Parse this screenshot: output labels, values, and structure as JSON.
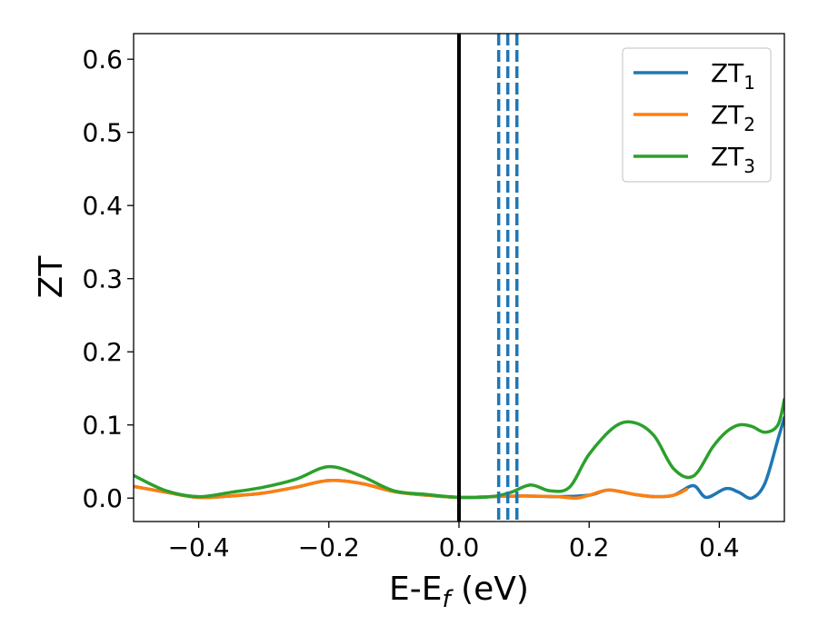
{
  "chart_data": {
    "type": "line",
    "xlabel": "E-E",
    "xlabel_sub": "f",
    "xlabel_suffix": " (eV)",
    "ylabel": "ZT",
    "xlim": [
      -0.5,
      0.5
    ],
    "ylim": [
      -0.032,
      0.635
    ],
    "xticks": [
      -0.4,
      -0.2,
      0.0,
      0.2,
      0.4
    ],
    "xtick_labels": [
      "−0.4",
      "−0.2",
      "0.0",
      "0.2",
      "0.4"
    ],
    "yticks": [
      0.0,
      0.1,
      0.2,
      0.3,
      0.4,
      0.5,
      0.6
    ],
    "ytick_labels": [
      "0.0",
      "0.1",
      "0.2",
      "0.3",
      "0.4",
      "0.5",
      "0.6"
    ],
    "grid": false,
    "legend_position": "top-right",
    "vlines": [
      {
        "x": 0.0,
        "style": "solid",
        "color": "#000000"
      },
      {
        "x": 0.061,
        "style": "dashed",
        "color": "#1f77b4"
      },
      {
        "x": 0.075,
        "style": "dashed",
        "color": "#1f77b4"
      },
      {
        "x": 0.089,
        "style": "dashed",
        "color": "#1f77b4"
      }
    ],
    "series": [
      {
        "name": "ZT",
        "sub": "1",
        "color": "#1f77b4",
        "x": [
          -0.5,
          -0.45,
          -0.4,
          -0.35,
          -0.3,
          -0.25,
          -0.2,
          -0.15,
          -0.1,
          -0.05,
          0.0,
          0.05,
          0.1,
          0.15,
          0.2,
          0.23,
          0.27,
          0.3,
          0.33,
          0.36,
          0.38,
          0.41,
          0.43,
          0.45,
          0.47,
          0.49,
          0.5
        ],
        "y": [
          0.016,
          0.008,
          0.001,
          0.003,
          0.007,
          0.015,
          0.024,
          0.02,
          0.009,
          0.004,
          0.001,
          0.002,
          0.003,
          0.002,
          0.004,
          0.011,
          0.005,
          0.002,
          0.004,
          0.017,
          0.001,
          0.013,
          0.008,
          0.0,
          0.02,
          0.08,
          0.11
        ]
      },
      {
        "name": "ZT",
        "sub": "2",
        "color": "#ff7f0e",
        "x": [
          -0.5,
          -0.45,
          -0.4,
          -0.35,
          -0.3,
          -0.25,
          -0.2,
          -0.15,
          -0.1,
          -0.05,
          0.0,
          0.05,
          0.1,
          0.15,
          0.18,
          0.2,
          0.23,
          0.27,
          0.3,
          0.33,
          0.35
        ],
        "y": [
          0.016,
          0.008,
          0.001,
          0.003,
          0.007,
          0.015,
          0.024,
          0.02,
          0.009,
          0.004,
          0.001,
          0.002,
          0.003,
          0.002,
          0.0,
          0.004,
          0.011,
          0.005,
          0.002,
          0.004,
          0.012
        ]
      },
      {
        "name": "ZT",
        "sub": "3",
        "color": "#2ca02c",
        "x": [
          -0.5,
          -0.45,
          -0.4,
          -0.35,
          -0.3,
          -0.25,
          -0.2,
          -0.15,
          -0.1,
          -0.05,
          0.0,
          0.05,
          0.08,
          0.11,
          0.14,
          0.17,
          0.2,
          0.24,
          0.27,
          0.3,
          0.33,
          0.36,
          0.39,
          0.41,
          0.43,
          0.45,
          0.47,
          0.49,
          0.5
        ],
        "y": [
          0.031,
          0.01,
          0.002,
          0.008,
          0.015,
          0.026,
          0.043,
          0.03,
          0.01,
          0.005,
          0.001,
          0.002,
          0.008,
          0.018,
          0.01,
          0.015,
          0.06,
          0.098,
          0.103,
          0.085,
          0.04,
          0.03,
          0.07,
          0.09,
          0.1,
          0.098,
          0.09,
          0.1,
          0.135
        ]
      }
    ]
  }
}
